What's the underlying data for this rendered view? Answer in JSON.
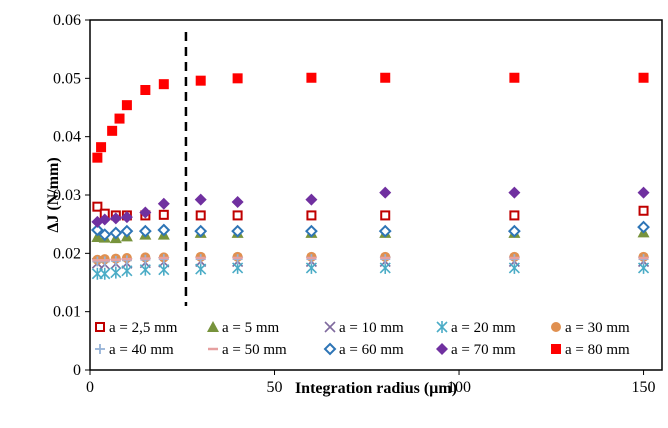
{
  "chart_data": {
    "type": "scatter",
    "title": "",
    "xlabel": "Integration radius (µm)",
    "ylabel": "ΔJ (N/mm)",
    "xlim": [
      0,
      155
    ],
    "ylim": [
      0,
      0.06
    ],
    "xticks": [
      0,
      50,
      100,
      150
    ],
    "xtick_labels": [
      "0",
      "50",
      "100",
      "150"
    ],
    "yticks": [
      0,
      0.01,
      0.02,
      0.03,
      0.04,
      0.05,
      0.06
    ],
    "ytick_labels": [
      "0",
      "0.01",
      "0.02",
      "0.03",
      "0.04",
      "0.05",
      "0.06"
    ],
    "grid": false,
    "legend_position": "bottom-inside",
    "vertical_dashed_line_x": 26,
    "series": [
      {
        "name": "a = 2,5 mm",
        "marker": "open-square",
        "color": "#c00000",
        "x": [
          2,
          4,
          7,
          10,
          15,
          20,
          30,
          40,
          60,
          80,
          115,
          150
        ],
        "y": [
          0.028,
          0.0268,
          0.0265,
          0.0265,
          0.0265,
          0.0266,
          0.0265,
          0.0265,
          0.0265,
          0.0265,
          0.0265,
          0.0273
        ]
      },
      {
        "name": "a = 5 mm",
        "marker": "triangle",
        "color": "#77933c",
        "x": [
          2,
          4,
          7,
          10,
          15,
          20,
          30,
          40,
          60,
          80,
          115,
          150
        ],
        "y": [
          0.0228,
          0.0227,
          0.0226,
          0.0229,
          0.0232,
          0.0232,
          0.0235,
          0.0235,
          0.0235,
          0.0235,
          0.0235,
          0.0236
        ]
      },
      {
        "name": "a = 10 mm",
        "marker": "x",
        "color": "#7f6a9e",
        "x": [
          2,
          4,
          7,
          10,
          15,
          20,
          30,
          40,
          60,
          80,
          115,
          150
        ],
        "y": [
          0.0183,
          0.0181,
          0.0182,
          0.0183,
          0.0184,
          0.0185,
          0.0186,
          0.0186,
          0.0186,
          0.0186,
          0.0186,
          0.0186
        ]
      },
      {
        "name": "a = 20 mm",
        "marker": "asterisk",
        "color": "#4bacc6",
        "x": [
          2,
          4,
          7,
          10,
          15,
          20,
          30,
          40,
          60,
          80,
          115,
          150
        ],
        "y": [
          0.0165,
          0.0165,
          0.0167,
          0.017,
          0.0172,
          0.0172,
          0.0173,
          0.0175,
          0.0175,
          0.0175,
          0.0175,
          0.0175
        ]
      },
      {
        "name": "a = 30 mm",
        "marker": "circle",
        "color": "#e09050",
        "x": [
          2,
          4,
          7,
          10,
          15,
          20,
          30,
          40,
          60,
          80,
          115,
          150
        ],
        "y": [
          0.0189,
          0.019,
          0.0191,
          0.0192,
          0.0193,
          0.0193,
          0.0194,
          0.0194,
          0.0194,
          0.0194,
          0.0194,
          0.0194
        ]
      },
      {
        "name": "a = 40 mm",
        "marker": "plus",
        "color": "#95b3d7",
        "x": [
          2,
          4,
          7,
          10,
          15,
          20,
          30,
          40,
          60,
          80,
          115,
          150
        ],
        "y": [
          0.0186,
          0.0186,
          0.0187,
          0.0188,
          0.0189,
          0.019,
          0.019,
          0.019,
          0.019,
          0.019,
          0.019,
          0.019
        ]
      },
      {
        "name": "a = 50 mm",
        "marker": "dash",
        "color": "#e6a0a0",
        "x": [
          2,
          4,
          7,
          10,
          15,
          20,
          30,
          40,
          60,
          80,
          115,
          150
        ],
        "y": [
          0.0188,
          0.0188,
          0.0189,
          0.019,
          0.0191,
          0.0192,
          0.0192,
          0.0192,
          0.0192,
          0.0192,
          0.0192,
          0.0192
        ]
      },
      {
        "name": "a = 60 mm",
        "marker": "open-diamond",
        "color": "#2e75b6",
        "x": [
          2,
          4,
          7,
          10,
          15,
          20,
          30,
          40,
          60,
          80,
          115,
          150
        ],
        "y": [
          0.024,
          0.0232,
          0.0235,
          0.0238,
          0.0238,
          0.024,
          0.0238,
          0.0238,
          0.0238,
          0.0238,
          0.0238,
          0.0245
        ]
      },
      {
        "name": "a = 70 mm",
        "marker": "diamond",
        "color": "#7030a0",
        "x": [
          2,
          4,
          7,
          10,
          15,
          20,
          30,
          40,
          60,
          80,
          115,
          150
        ],
        "y": [
          0.0254,
          0.0258,
          0.026,
          0.0262,
          0.027,
          0.0285,
          0.0292,
          0.0288,
          0.0292,
          0.0304,
          0.0304,
          0.0304
        ]
      },
      {
        "name": "a = 80 mm",
        "marker": "square",
        "color": "#ff0000",
        "x": [
          2,
          3,
          6,
          8,
          10,
          15,
          20,
          30,
          40,
          60,
          80,
          115,
          150
        ],
        "y": [
          0.0364,
          0.0382,
          0.041,
          0.0431,
          0.0454,
          0.048,
          0.049,
          0.0496,
          0.05,
          0.0501,
          0.0501,
          0.0501,
          0.0501
        ]
      }
    ]
  }
}
